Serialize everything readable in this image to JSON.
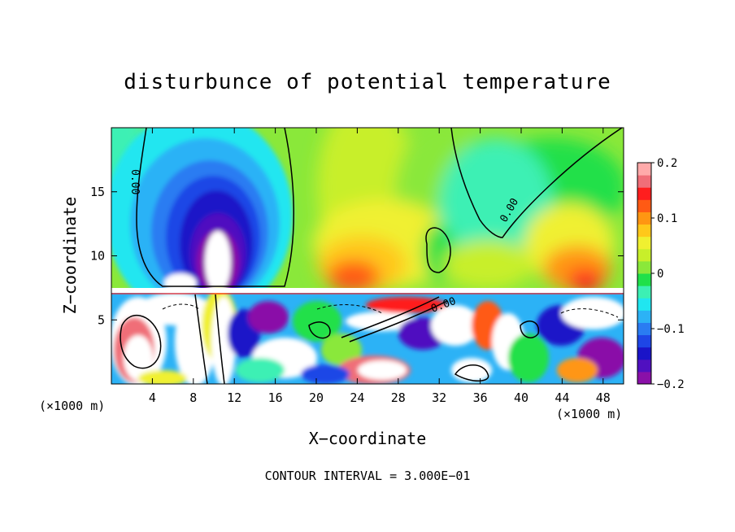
{
  "chart_data": {
    "type": "heatmap",
    "title": "disturbunce of potential temperature",
    "xlabel": "X−coordinate",
    "ylabel": "Z−coordinate",
    "x_unit": "(×1000 m)",
    "xlim": [
      0,
      50
    ],
    "ylim": [
      0,
      20
    ],
    "x_ticks": [
      4,
      8,
      12,
      16,
      20,
      24,
      28,
      32,
      36,
      40,
      44,
      48
    ],
    "y_ticks": [
      5,
      10,
      15
    ],
    "contour_interval_text": "CONTOUR INTERVAL = 3.000E−01",
    "contour_labels": [
      "0.00",
      "0.00",
      "0.00"
    ],
    "colorbar": {
      "range": [
        -0.2,
        0.2
      ],
      "tick_values": [
        0.2,
        0.1,
        0,
        -0.1,
        -0.2
      ],
      "tick_labels": [
        "0.2",
        "0.1",
        "0",
        "−0.1",
        "−0.2"
      ],
      "colors": [
        "#8a10a8",
        "#5010c0",
        "#1a14c8",
        "#1e46e6",
        "#2a7cf2",
        "#2cb2f6",
        "#20e6f0",
        "#3cf0b4",
        "#20e04a",
        "#8ae83a",
        "#c8ef2a",
        "#f0f030",
        "#ffc81a",
        "#ff9612",
        "#ff5a14",
        "#ff1e1e",
        "#f06e78",
        "#ffaaaa"
      ]
    }
  }
}
